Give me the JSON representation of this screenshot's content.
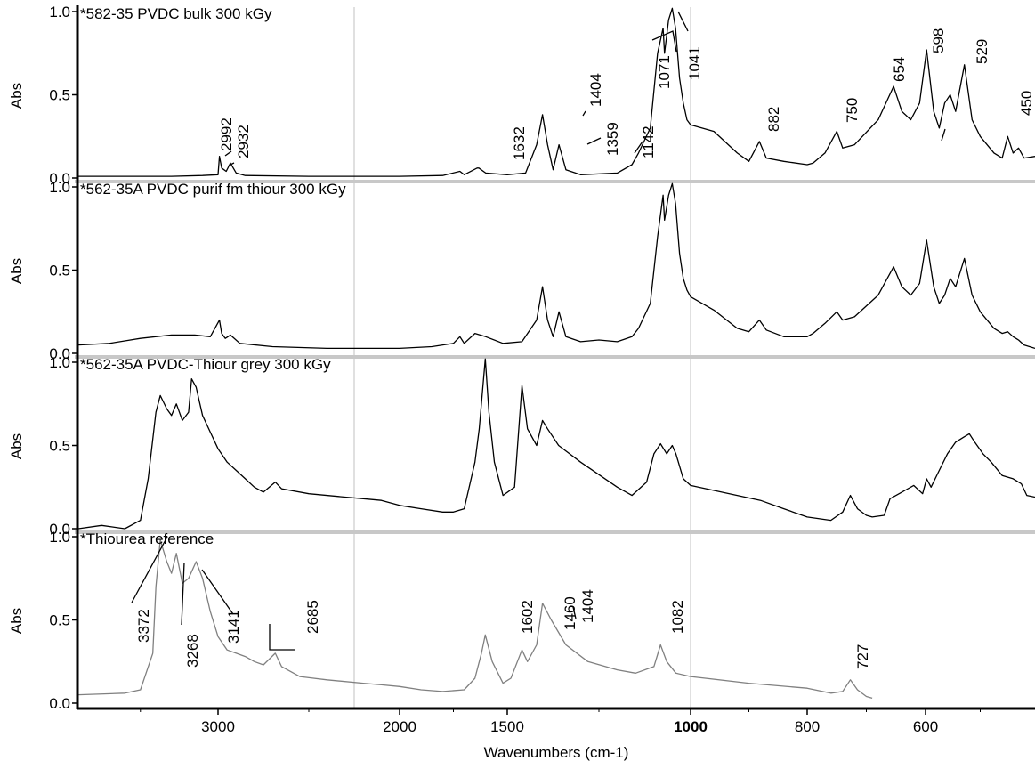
{
  "chart_data": {
    "type": "line",
    "xlabel": "Wavenumbers (cm-1)",
    "ylabel": "Abs",
    "x_axis": "reversed, piecewise scale (expanded below 1000 cm-1)",
    "xticks": [
      3000,
      2000,
      1500,
      1000,
      800,
      600
    ],
    "xtick_labels": [
      "3000",
      "2000",
      "1500",
      "1000",
      "800",
      "600"
    ],
    "yticks": [
      0.0,
      0.5,
      1.0
    ],
    "ytick_labels": [
      "0.0",
      "0.5",
      "1.0"
    ],
    "ylim": [
      0,
      1.05
    ],
    "reference_lines_x": [
      2250,
      1000
    ],
    "colors": {
      "dark": "#000000",
      "reference": "#808080",
      "divider": "#c8c8c8",
      "vline": "#c0c0c0"
    },
    "panels": [
      {
        "title": "*582-35 PVDC bulk 300 kGy",
        "color": "#000000",
        "points": [
          [
            3900,
            0.01
          ],
          [
            3300,
            0.01
          ],
          [
            3100,
            0.015
          ],
          [
            3000,
            0.02
          ],
          [
            2992,
            0.13
          ],
          [
            2980,
            0.06
          ],
          [
            2955,
            0.04
          ],
          [
            2932,
            0.09
          ],
          [
            2900,
            0.03
          ],
          [
            2850,
            0.015
          ],
          [
            2500,
            0.01
          ],
          [
            2000,
            0.01
          ],
          [
            1800,
            0.015
          ],
          [
            1720,
            0.04
          ],
          [
            1700,
            0.02
          ],
          [
            1640,
            0.06
          ],
          [
            1632,
            0.06
          ],
          [
            1600,
            0.03
          ],
          [
            1500,
            0.02
          ],
          [
            1450,
            0.03
          ],
          [
            1420,
            0.2
          ],
          [
            1404,
            0.38
          ],
          [
            1390,
            0.2
          ],
          [
            1375,
            0.05
          ],
          [
            1359,
            0.2
          ],
          [
            1340,
            0.05
          ],
          [
            1300,
            0.02
          ],
          [
            1200,
            0.03
          ],
          [
            1160,
            0.08
          ],
          [
            1142,
            0.15
          ],
          [
            1110,
            0.3
          ],
          [
            1090,
            0.75
          ],
          [
            1075,
            0.9
          ],
          [
            1071,
            0.75
          ],
          [
            1060,
            0.95
          ],
          [
            1050,
            1.02
          ],
          [
            1041,
            0.9
          ],
          [
            1030,
            0.6
          ],
          [
            1020,
            0.45
          ],
          [
            1010,
            0.35
          ],
          [
            1000,
            0.32
          ],
          [
            960,
            0.28
          ],
          [
            920,
            0.15
          ],
          [
            900,
            0.1
          ],
          [
            882,
            0.22
          ],
          [
            870,
            0.12
          ],
          [
            840,
            0.1
          ],
          [
            800,
            0.08
          ],
          [
            790,
            0.09
          ],
          [
            770,
            0.15
          ],
          [
            750,
            0.28
          ],
          [
            740,
            0.18
          ],
          [
            720,
            0.2
          ],
          [
            680,
            0.35
          ],
          [
            654,
            0.55
          ],
          [
            640,
            0.4
          ],
          [
            625,
            0.35
          ],
          [
            610,
            0.45
          ],
          [
            598,
            0.77
          ],
          [
            585,
            0.4
          ],
          [
            575,
            0.3
          ],
          [
            565,
            0.45
          ],
          [
            555,
            0.5
          ],
          [
            545,
            0.4
          ],
          [
            529,
            0.68
          ],
          [
            515,
            0.35
          ],
          [
            500,
            0.25
          ],
          [
            475,
            0.15
          ],
          [
            460,
            0.12
          ],
          [
            450,
            0.25
          ],
          [
            440,
            0.15
          ],
          [
            430,
            0.18
          ],
          [
            420,
            0.12
          ],
          [
            400,
            0.13
          ]
        ],
        "peak_labels": [
          "2992",
          "2932",
          "1632",
          "1404",
          "1359",
          "1142",
          "1071",
          "1041",
          "882",
          "750",
          "654",
          "598",
          "529",
          "450"
        ]
      },
      {
        "title": "*562-35A PVDC purif fm thiour 300 kGy",
        "color": "#000000",
        "points": [
          [
            3900,
            0.05
          ],
          [
            3700,
            0.06
          ],
          [
            3500,
            0.09
          ],
          [
            3300,
            0.11
          ],
          [
            3150,
            0.11
          ],
          [
            3050,
            0.1
          ],
          [
            2992,
            0.2
          ],
          [
            2980,
            0.12
          ],
          [
            2960,
            0.09
          ],
          [
            2932,
            0.11
          ],
          [
            2880,
            0.06
          ],
          [
            2700,
            0.04
          ],
          [
            2400,
            0.03
          ],
          [
            2000,
            0.03
          ],
          [
            1850,
            0.04
          ],
          [
            1750,
            0.06
          ],
          [
            1720,
            0.1
          ],
          [
            1700,
            0.06
          ],
          [
            1650,
            0.12
          ],
          [
            1600,
            0.1
          ],
          [
            1520,
            0.06
          ],
          [
            1460,
            0.07
          ],
          [
            1420,
            0.2
          ],
          [
            1404,
            0.4
          ],
          [
            1390,
            0.2
          ],
          [
            1375,
            0.1
          ],
          [
            1359,
            0.25
          ],
          [
            1340,
            0.1
          ],
          [
            1300,
            0.07
          ],
          [
            1250,
            0.08
          ],
          [
            1200,
            0.07
          ],
          [
            1160,
            0.1
          ],
          [
            1142,
            0.15
          ],
          [
            1110,
            0.3
          ],
          [
            1090,
            0.7
          ],
          [
            1075,
            0.95
          ],
          [
            1071,
            0.8
          ],
          [
            1060,
            0.95
          ],
          [
            1050,
            1.02
          ],
          [
            1041,
            0.9
          ],
          [
            1030,
            0.6
          ],
          [
            1020,
            0.45
          ],
          [
            1010,
            0.38
          ],
          [
            1000,
            0.34
          ],
          [
            960,
            0.26
          ],
          [
            920,
            0.15
          ],
          [
            900,
            0.13
          ],
          [
            882,
            0.2
          ],
          [
            870,
            0.14
          ],
          [
            840,
            0.1
          ],
          [
            800,
            0.1
          ],
          [
            790,
            0.12
          ],
          [
            770,
            0.18
          ],
          [
            750,
            0.25
          ],
          [
            740,
            0.2
          ],
          [
            720,
            0.22
          ],
          [
            680,
            0.35
          ],
          [
            654,
            0.52
          ],
          [
            640,
            0.4
          ],
          [
            625,
            0.35
          ],
          [
            610,
            0.42
          ],
          [
            598,
            0.68
          ],
          [
            585,
            0.4
          ],
          [
            575,
            0.3
          ],
          [
            565,
            0.35
          ],
          [
            555,
            0.45
          ],
          [
            545,
            0.4
          ],
          [
            529,
            0.57
          ],
          [
            515,
            0.35
          ],
          [
            500,
            0.25
          ],
          [
            475,
            0.15
          ],
          [
            460,
            0.12
          ],
          [
            450,
            0.13
          ],
          [
            440,
            0.1
          ],
          [
            430,
            0.08
          ],
          [
            420,
            0.05
          ],
          [
            400,
            0.03
          ]
        ],
        "peak_labels": []
      },
      {
        "title": "*562-35A PVDC-Thiour grey 300 kGy",
        "color": "#000000",
        "points": [
          [
            3900,
            0.0
          ],
          [
            3750,
            0.02
          ],
          [
            3600,
            0.0
          ],
          [
            3500,
            0.05
          ],
          [
            3450,
            0.3
          ],
          [
            3400,
            0.7
          ],
          [
            3372,
            0.8
          ],
          [
            3330,
            0.72
          ],
          [
            3300,
            0.68
          ],
          [
            3268,
            0.75
          ],
          [
            3230,
            0.65
          ],
          [
            3190,
            0.7
          ],
          [
            3170,
            0.9
          ],
          [
            3141,
            0.85
          ],
          [
            3100,
            0.68
          ],
          [
            3050,
            0.58
          ],
          [
            3000,
            0.48
          ],
          [
            2950,
            0.4
          ],
          [
            2900,
            0.35
          ],
          [
            2850,
            0.3
          ],
          [
            2800,
            0.25
          ],
          [
            2750,
            0.22
          ],
          [
            2685,
            0.28
          ],
          [
            2650,
            0.24
          ],
          [
            2500,
            0.21
          ],
          [
            2300,
            0.19
          ],
          [
            2200,
            0.18
          ],
          [
            2100,
            0.17
          ],
          [
            2000,
            0.14
          ],
          [
            1900,
            0.12
          ],
          [
            1800,
            0.1
          ],
          [
            1750,
            0.1
          ],
          [
            1700,
            0.12
          ],
          [
            1650,
            0.4
          ],
          [
            1630,
            0.6
          ],
          [
            1602,
            1.02
          ],
          [
            1585,
            0.7
          ],
          [
            1560,
            0.4
          ],
          [
            1520,
            0.2
          ],
          [
            1480,
            0.25
          ],
          [
            1460,
            0.86
          ],
          [
            1445,
            0.6
          ],
          [
            1420,
            0.5
          ],
          [
            1404,
            0.65
          ],
          [
            1390,
            0.6
          ],
          [
            1360,
            0.5
          ],
          [
            1300,
            0.4
          ],
          [
            1200,
            0.25
          ],
          [
            1160,
            0.2
          ],
          [
            1120,
            0.28
          ],
          [
            1100,
            0.45
          ],
          [
            1082,
            0.51
          ],
          [
            1065,
            0.45
          ],
          [
            1050,
            0.5
          ],
          [
            1040,
            0.45
          ],
          [
            1020,
            0.3
          ],
          [
            1000,
            0.26
          ],
          [
            960,
            0.23
          ],
          [
            920,
            0.2
          ],
          [
            880,
            0.17
          ],
          [
            840,
            0.12
          ],
          [
            800,
            0.07
          ],
          [
            760,
            0.05
          ],
          [
            740,
            0.1
          ],
          [
            727,
            0.2
          ],
          [
            715,
            0.12
          ],
          [
            700,
            0.08
          ],
          [
            690,
            0.07
          ],
          [
            670,
            0.08
          ],
          [
            660,
            0.18
          ],
          [
            640,
            0.22
          ],
          [
            620,
            0.26
          ],
          [
            605,
            0.21
          ],
          [
            598,
            0.3
          ],
          [
            590,
            0.25
          ],
          [
            575,
            0.35
          ],
          [
            560,
            0.45
          ],
          [
            545,
            0.52
          ],
          [
            530,
            0.55
          ],
          [
            520,
            0.57
          ],
          [
            510,
            0.52
          ],
          [
            495,
            0.45
          ],
          [
            480,
            0.4
          ],
          [
            460,
            0.32
          ],
          [
            440,
            0.3
          ],
          [
            425,
            0.27
          ],
          [
            415,
            0.2
          ],
          [
            400,
            0.19
          ]
        ],
        "peak_labels": []
      },
      {
        "title": "*Thiourea reference",
        "color": "#808080",
        "points": [
          [
            3900,
            0.05
          ],
          [
            3600,
            0.06
          ],
          [
            3500,
            0.08
          ],
          [
            3420,
            0.3
          ],
          [
            3400,
            0.7
          ],
          [
            3372,
            0.98
          ],
          [
            3330,
            0.85
          ],
          [
            3300,
            0.78
          ],
          [
            3268,
            0.9
          ],
          [
            3230,
            0.72
          ],
          [
            3190,
            0.75
          ],
          [
            3141,
            0.85
          ],
          [
            3100,
            0.75
          ],
          [
            3050,
            0.55
          ],
          [
            3000,
            0.4
          ],
          [
            2950,
            0.32
          ],
          [
            2900,
            0.3
          ],
          [
            2850,
            0.28
          ],
          [
            2800,
            0.25
          ],
          [
            2750,
            0.23
          ],
          [
            2685,
            0.3
          ],
          [
            2650,
            0.22
          ],
          [
            2550,
            0.16
          ],
          [
            2400,
            0.14
          ],
          [
            2200,
            0.12
          ],
          [
            2100,
            0.11
          ],
          [
            2000,
            0.1
          ],
          [
            1900,
            0.08
          ],
          [
            1800,
            0.07
          ],
          [
            1700,
            0.08
          ],
          [
            1650,
            0.15
          ],
          [
            1620,
            0.3
          ],
          [
            1602,
            0.41
          ],
          [
            1570,
            0.25
          ],
          [
            1520,
            0.12
          ],
          [
            1490,
            0.15
          ],
          [
            1460,
            0.32
          ],
          [
            1445,
            0.25
          ],
          [
            1420,
            0.35
          ],
          [
            1404,
            0.6
          ],
          [
            1380,
            0.5
          ],
          [
            1340,
            0.35
          ],
          [
            1280,
            0.25
          ],
          [
            1200,
            0.2
          ],
          [
            1150,
            0.18
          ],
          [
            1100,
            0.22
          ],
          [
            1082,
            0.35
          ],
          [
            1065,
            0.25
          ],
          [
            1040,
            0.18
          ],
          [
            1000,
            0.16
          ],
          [
            900,
            0.12
          ],
          [
            800,
            0.09
          ],
          [
            760,
            0.06
          ],
          [
            740,
            0.07
          ],
          [
            727,
            0.14
          ],
          [
            715,
            0.08
          ],
          [
            700,
            0.04
          ],
          [
            690,
            0.03
          ]
        ],
        "peak_labels": [
          "3372",
          "3268",
          "3141",
          "2685",
          "1602",
          "1460",
          "1404",
          "1082",
          "727"
        ]
      }
    ]
  }
}
